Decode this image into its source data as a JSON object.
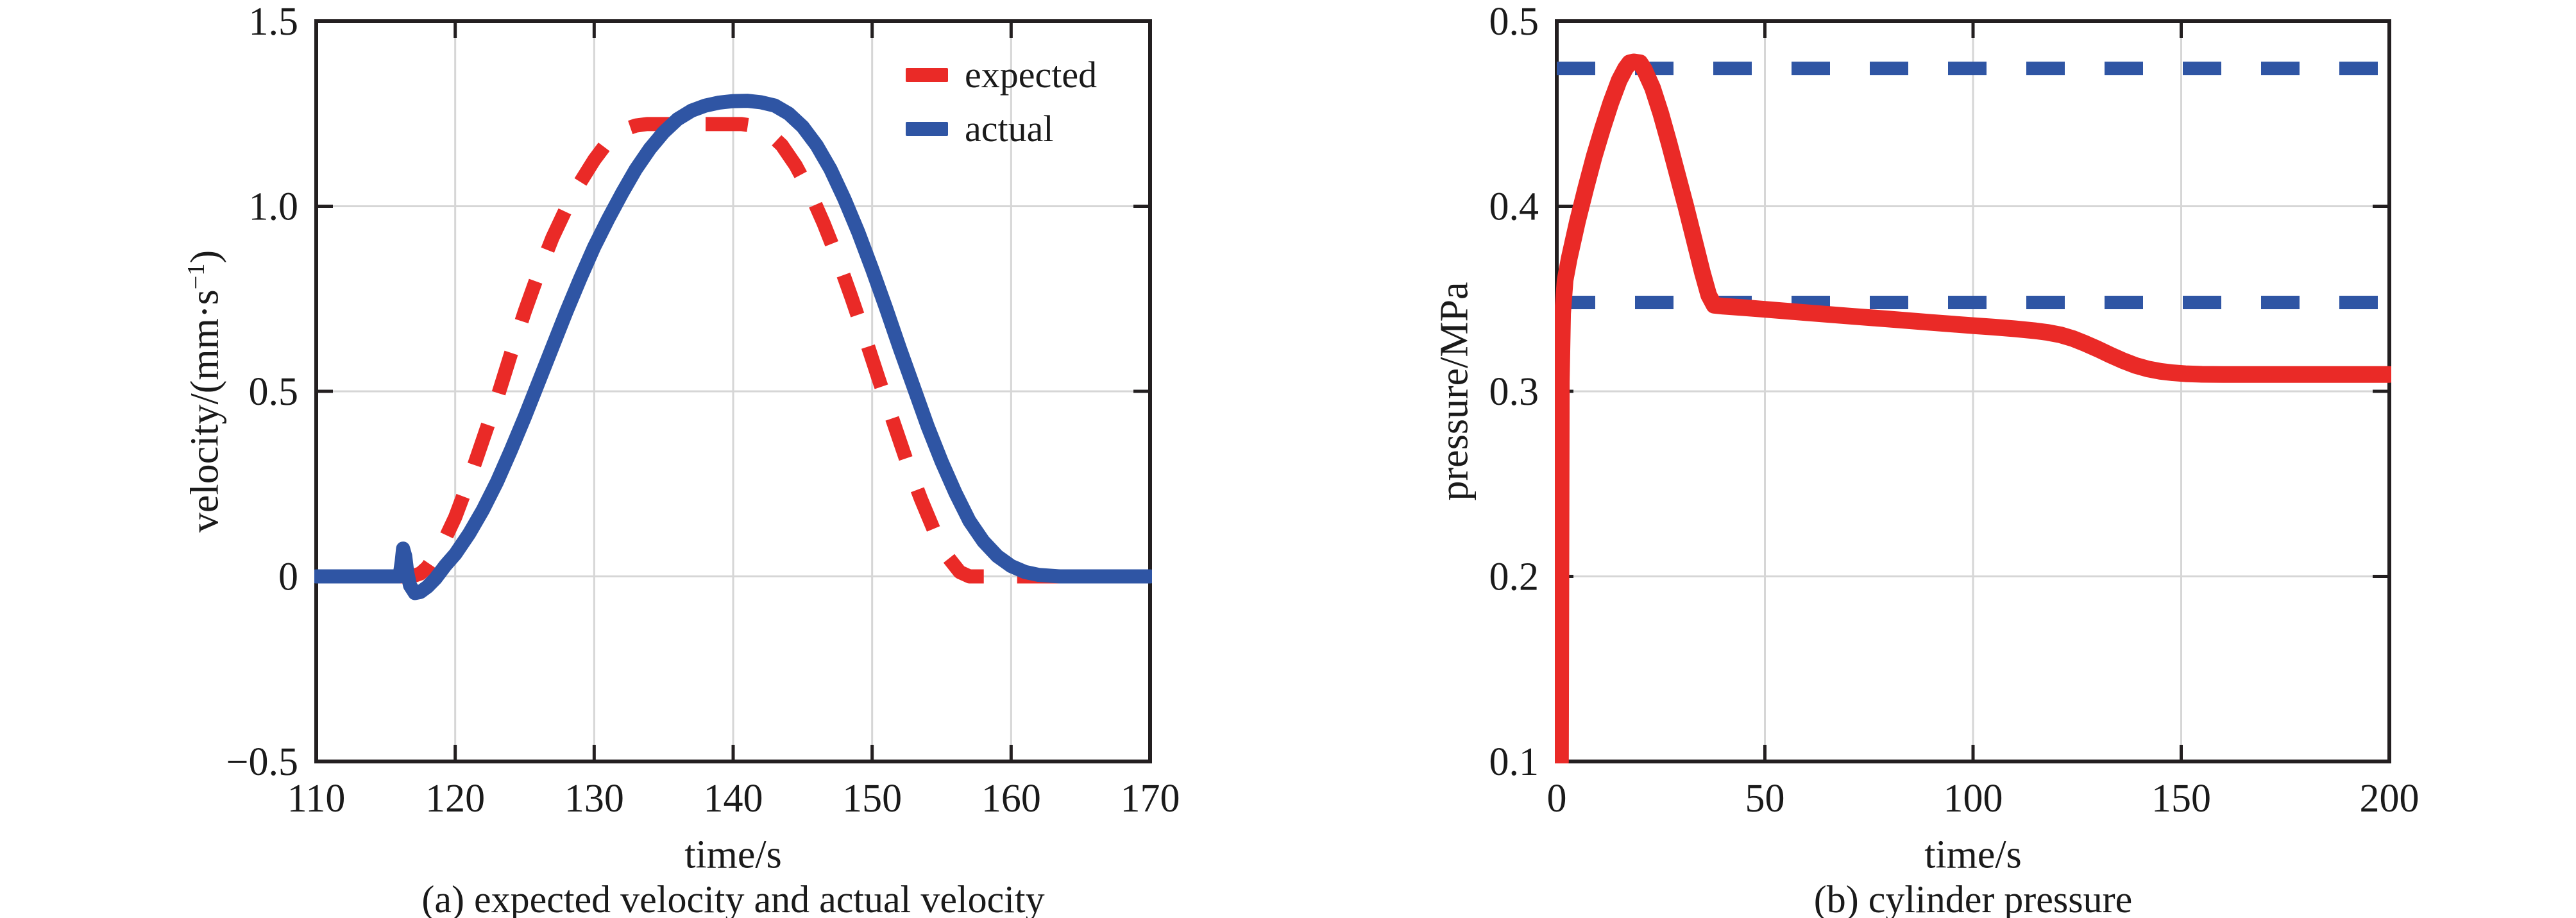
{
  "colors": {
    "expected_red": "#ea2a27",
    "actual_blue": "#2f55a4",
    "grid": "#d6d6d6",
    "axis": "#231f20",
    "text": "#1a1a1a",
    "background": "#ffffff"
  },
  "chart_data": [
    {
      "type": "line",
      "id": "velocity",
      "caption": "(a) expected velocity and actual velocity",
      "xlabel": "time/s",
      "ylabel": "velocity/(mm·s⁻¹)",
      "xlim": [
        110,
        170
      ],
      "ylim": [
        -0.5,
        1.5
      ],
      "xticks": [
        110,
        120,
        130,
        140,
        150,
        160,
        170
      ],
      "xtick_labels": [
        "110",
        "120",
        "130",
        "140",
        "150",
        "160",
        "170"
      ],
      "yticks": [
        1.5,
        1.0,
        0.5,
        0,
        -0.5
      ],
      "ytick_labels": [
        "1.5",
        "1.0",
        "0.5",
        "0",
        "−0.5"
      ],
      "grid": "on",
      "legend_position": "inside top-right",
      "legend": [
        {
          "label": "expected",
          "color": "#ea2a27",
          "dashed": true
        },
        {
          "label": "actual",
          "color": "#2f55a4",
          "dashed": false
        }
      ],
      "series": [
        {
          "name": "expected",
          "color": "#ea2a27",
          "width": 22,
          "dash": "66 52",
          "points": [
            [
              110,
              0
            ],
            [
              116.9,
              0
            ],
            [
              117.5,
              0.008
            ],
            [
              118,
              0.025
            ],
            [
              119,
              0.08
            ],
            [
              120,
              0.16
            ],
            [
              121,
              0.26
            ],
            [
              122,
              0.37
            ],
            [
              123,
              0.48
            ],
            [
              124,
              0.6
            ],
            [
              125,
              0.715
            ],
            [
              126,
              0.82
            ],
            [
              127,
              0.915
            ],
            [
              128,
              0.995
            ],
            [
              129,
              1.065
            ],
            [
              130,
              1.125
            ],
            [
              131,
              1.175
            ],
            [
              132,
              1.205
            ],
            [
              133,
              1.218
            ],
            [
              133.8,
              1.222
            ],
            [
              140.6,
              1.222
            ],
            [
              141.5,
              1.217
            ],
            [
              142.5,
              1.2
            ],
            [
              143.5,
              1.165
            ],
            [
              144.5,
              1.11
            ],
            [
              145.5,
              1.04
            ],
            [
              146.5,
              0.955
            ],
            [
              147.5,
              0.86
            ],
            [
              148.5,
              0.755
            ],
            [
              149.5,
              0.645
            ],
            [
              150.5,
              0.53
            ],
            [
              151.5,
              0.42
            ],
            [
              152.5,
              0.31
            ],
            [
              153.5,
              0.21
            ],
            [
              154.5,
              0.12
            ],
            [
              155.5,
              0.05
            ],
            [
              156.3,
              0.012
            ],
            [
              157,
              0
            ],
            [
              170,
              0
            ]
          ]
        },
        {
          "name": "actual",
          "color": "#2f55a4",
          "width": 22,
          "dash": null,
          "points": [
            [
              110,
              0
            ],
            [
              116.0,
              0
            ],
            [
              116.15,
              0.04
            ],
            [
              116.25,
              0.075
            ],
            [
              116.4,
              0.055
            ],
            [
              116.55,
              0.01
            ],
            [
              116.75,
              -0.025
            ],
            [
              117.1,
              -0.045
            ],
            [
              117.5,
              -0.042
            ],
            [
              118,
              -0.028
            ],
            [
              118.6,
              -0.005
            ],
            [
              119.3,
              0.03
            ],
            [
              120,
              0.06
            ],
            [
              121,
              0.115
            ],
            [
              122,
              0.18
            ],
            [
              123,
              0.255
            ],
            [
              124,
              0.34
            ],
            [
              125,
              0.43
            ],
            [
              126,
              0.525
            ],
            [
              127,
              0.62
            ],
            [
              128,
              0.715
            ],
            [
              129,
              0.805
            ],
            [
              130,
              0.89
            ],
            [
              131,
              0.965
            ],
            [
              132,
              1.035
            ],
            [
              133,
              1.1
            ],
            [
              134,
              1.155
            ],
            [
              135,
              1.2
            ],
            [
              136,
              1.235
            ],
            [
              137,
              1.258
            ],
            [
              138,
              1.272
            ],
            [
              139,
              1.28
            ],
            [
              140,
              1.284
            ],
            [
              141,
              1.285
            ],
            [
              142,
              1.281
            ],
            [
              143,
              1.272
            ],
            [
              144,
              1.25
            ],
            [
              145,
              1.215
            ],
            [
              146,
              1.165
            ],
            [
              147,
              1.1
            ],
            [
              148,
              1.02
            ],
            [
              149,
              0.93
            ],
            [
              150,
              0.83
            ],
            [
              151,
              0.725
            ],
            [
              152,
              0.615
            ],
            [
              153,
              0.51
            ],
            [
              154,
              0.405
            ],
            [
              155,
              0.31
            ],
            [
              156,
              0.225
            ],
            [
              157,
              0.15
            ],
            [
              158,
              0.095
            ],
            [
              159,
              0.055
            ],
            [
              160,
              0.028
            ],
            [
              161,
              0.012
            ],
            [
              162,
              0.004
            ],
            [
              163.5,
              0
            ],
            [
              170,
              0
            ]
          ]
        }
      ]
    },
    {
      "type": "line",
      "id": "pressure",
      "caption": "(b) cylinder pressure",
      "xlabel": "time/s",
      "ylabel": "pressure/MPa",
      "xlim": [
        0,
        200
      ],
      "ylim": [
        0.1,
        0.5
      ],
      "xticks": [
        0,
        50,
        100,
        150,
        200
      ],
      "xtick_labels": [
        "0",
        "50",
        "100",
        "150",
        "200"
      ],
      "yticks": [
        0.5,
        0.4,
        0.3,
        0.2,
        0.1
      ],
      "ytick_labels": [
        "0.5",
        "0.4",
        "0.3",
        "0.2",
        "0.1"
      ],
      "grid": "on",
      "legend_position": "none",
      "legend": [],
      "series": [
        {
          "name": "upper-limit",
          "color": "#2f55a4",
          "width": 21,
          "dash": "60 62",
          "points": [
            [
              0,
              0.4745
            ],
            [
              200,
              0.4745
            ]
          ]
        },
        {
          "name": "lower-limit",
          "color": "#2f55a4",
          "width": 21,
          "dash": "60 62",
          "points": [
            [
              0,
              0.348
            ],
            [
              200,
              0.348
            ]
          ]
        },
        {
          "name": "cylinder-pressure",
          "color": "#ea2a27",
          "width": 26,
          "dash": null,
          "points": [
            [
              0.9,
              0.1
            ],
            [
              1.1,
              0.305
            ],
            [
              1.4,
              0.342
            ],
            [
              2,
              0.36
            ],
            [
              3,
              0.372
            ],
            [
              5,
              0.392
            ],
            [
              7,
              0.41
            ],
            [
              9,
              0.427
            ],
            [
              11,
              0.442
            ],
            [
              13,
              0.456
            ],
            [
              15,
              0.468
            ],
            [
              16.5,
              0.4745
            ],
            [
              17.5,
              0.4775
            ],
            [
              18.5,
              0.478
            ],
            [
              20,
              0.4775
            ],
            [
              21,
              0.474
            ],
            [
              23,
              0.464
            ],
            [
              25,
              0.45
            ],
            [
              27,
              0.434
            ],
            [
              29,
              0.417
            ],
            [
              31,
              0.4
            ],
            [
              33,
              0.382
            ],
            [
              35,
              0.364
            ],
            [
              36.5,
              0.352
            ],
            [
              37.8,
              0.3465
            ],
            [
              40,
              0.346
            ],
            [
              45,
              0.3452
            ],
            [
              50,
              0.3443
            ],
            [
              55,
              0.3434
            ],
            [
              60,
              0.3425
            ],
            [
              70,
              0.3407
            ],
            [
              80,
              0.339
            ],
            [
              90,
              0.3372
            ],
            [
              100,
              0.3355
            ],
            [
              105,
              0.3347
            ],
            [
              110,
              0.3338
            ],
            [
              115,
              0.3327
            ],
            [
              118,
              0.3318
            ],
            [
              121,
              0.3305
            ],
            [
              124,
              0.3285
            ],
            [
              127,
              0.3258
            ],
            [
              130,
              0.3228
            ],
            [
              133,
              0.3196
            ],
            [
              136,
              0.3166
            ],
            [
              139,
              0.314
            ],
            [
              142,
              0.3121
            ],
            [
              145,
              0.3108
            ],
            [
              148,
              0.31
            ],
            [
              151,
              0.3095
            ],
            [
              155,
              0.3092
            ],
            [
              160,
              0.3091
            ],
            [
              200,
              0.3091
            ]
          ]
        }
      ]
    }
  ]
}
